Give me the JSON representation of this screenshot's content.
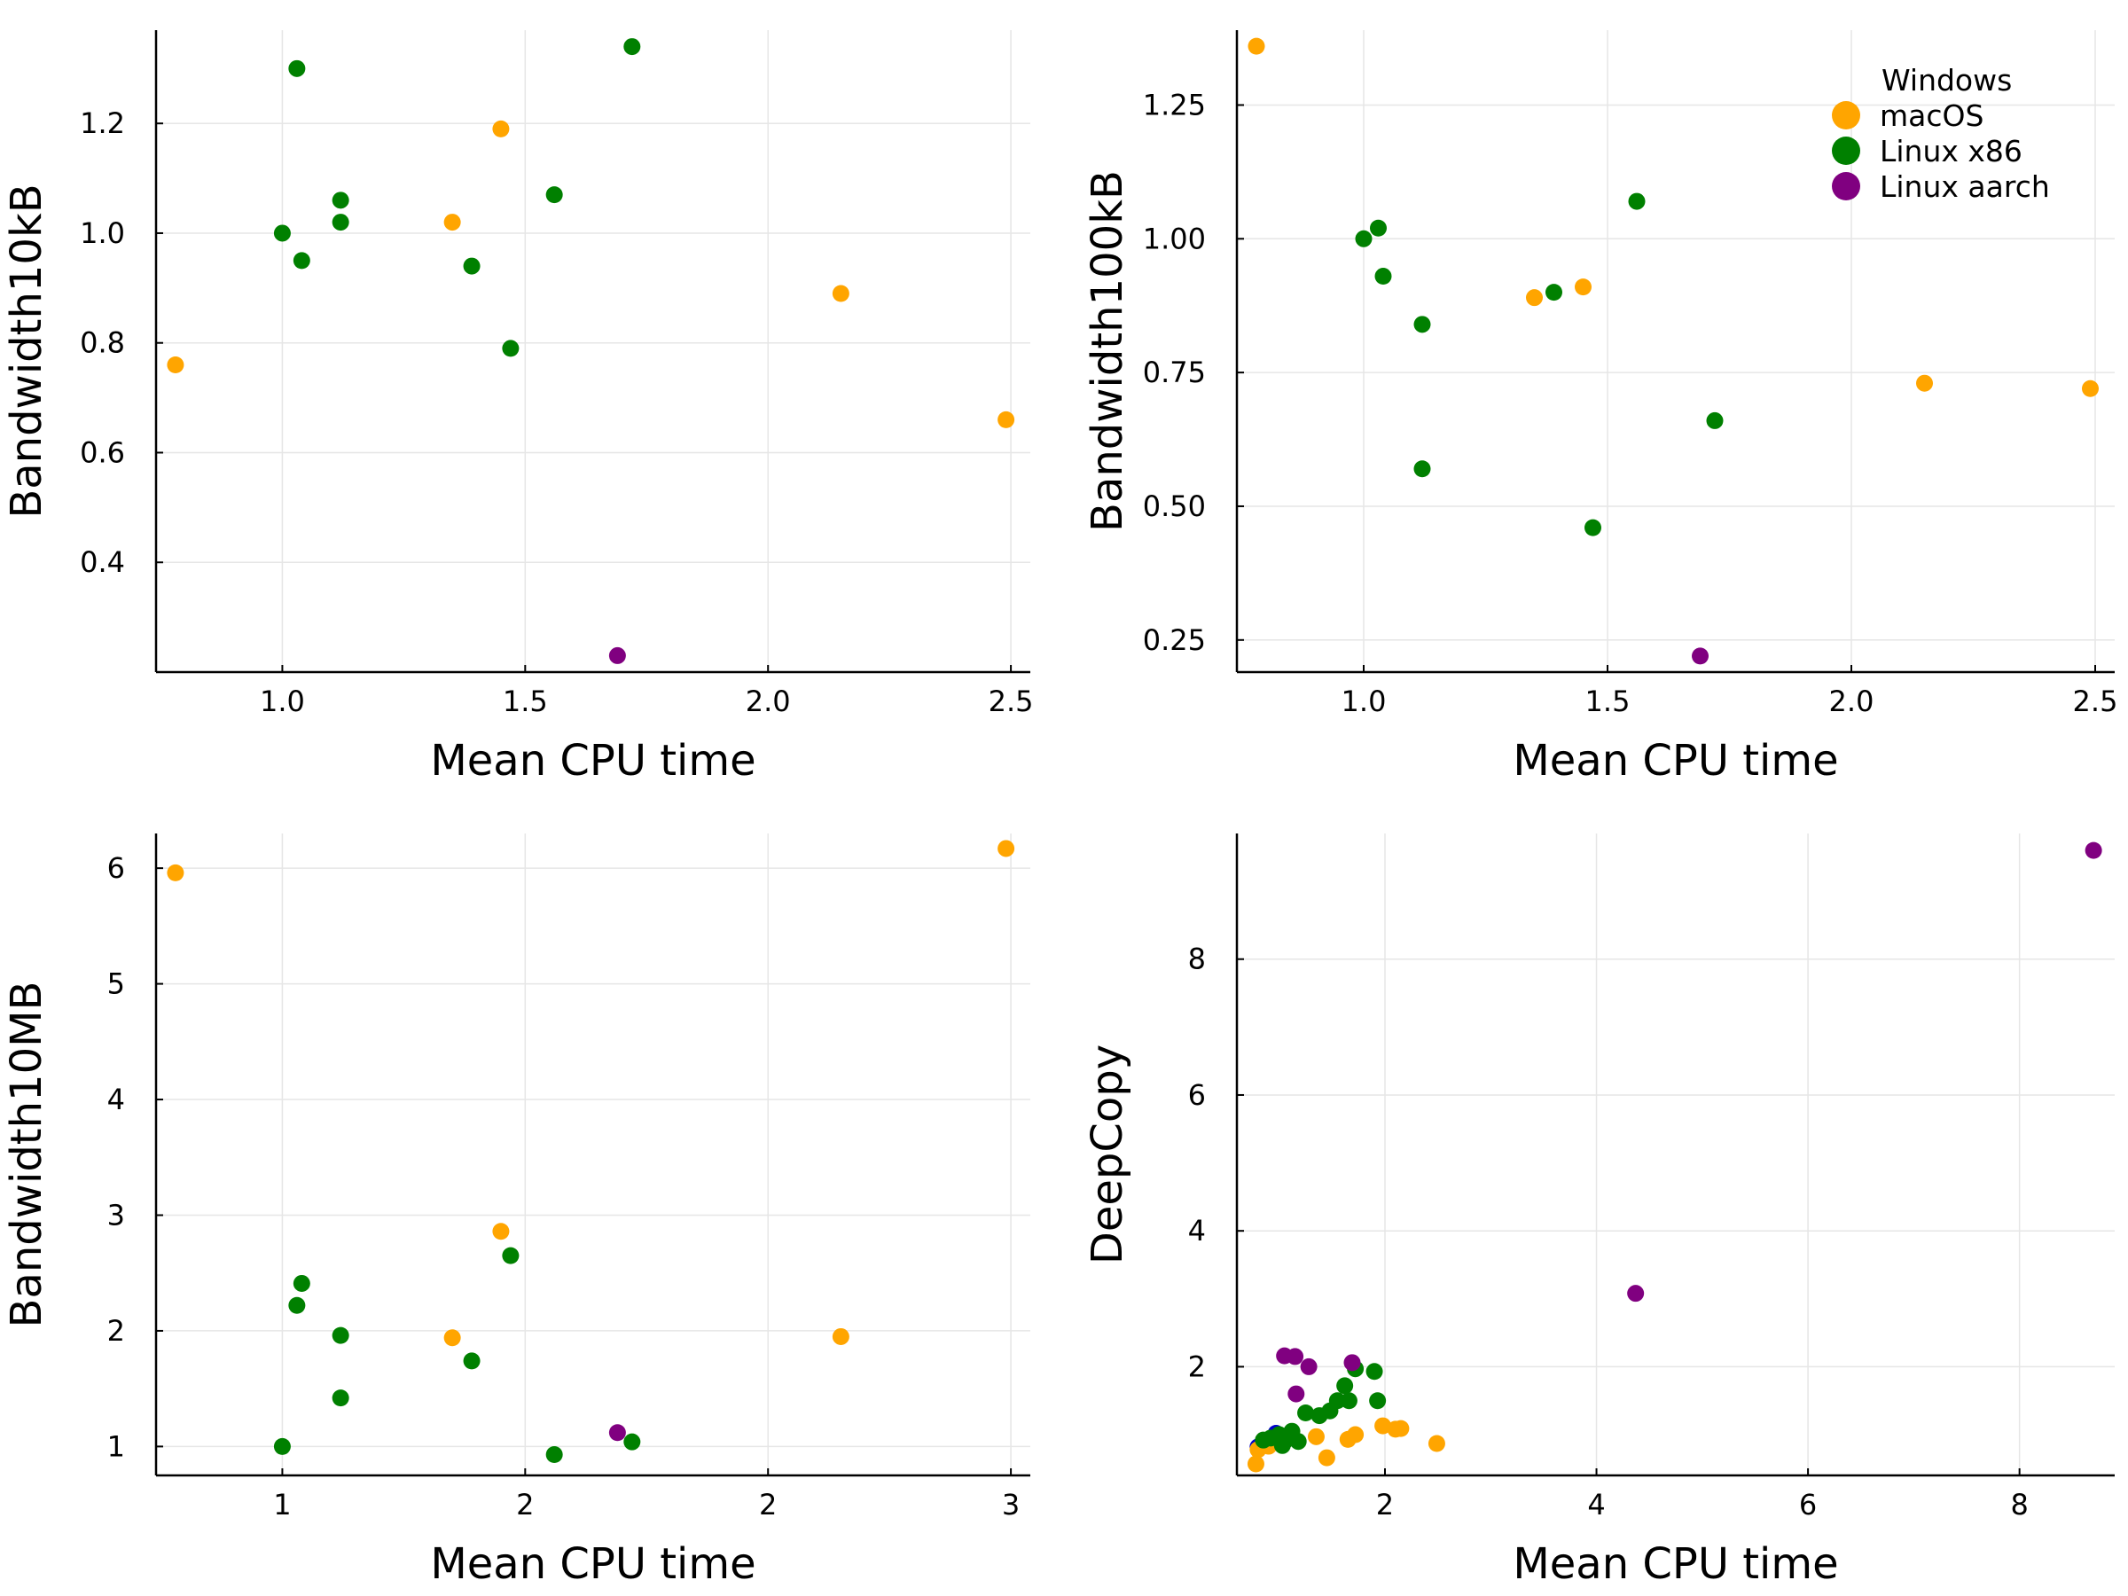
{
  "colors": {
    "Windows": "#0000cc",
    "macOS": "#ffa500",
    "Linux x86": "#008000",
    "Linux aarch": "#800080"
  },
  "legend": {
    "placement": "top-right",
    "entries": [
      "Windows",
      "macOS",
      "Linux x86",
      "Linux aarch"
    ]
  },
  "chart_data": [
    {
      "type": "scatter",
      "xlabel": "Mean CPU time",
      "ylabel": "Bandwidth10kB",
      "xlim": [
        0.74,
        2.54
      ],
      "ylim": [
        0.2,
        1.37
      ],
      "xticks": [
        1.0,
        1.5,
        2.0,
        2.5
      ],
      "yticks": [
        0.4,
        0.6,
        0.8,
        1.0,
        1.2
      ],
      "tick_decimals": 1,
      "grid": true,
      "series": [
        {
          "name": "macOS",
          "points": [
            [
              0.78,
              0.76
            ],
            [
              1.35,
              1.02
            ],
            [
              1.45,
              1.19
            ],
            [
              2.15,
              0.89
            ],
            [
              2.49,
              0.66
            ]
          ]
        },
        {
          "name": "Linux x86",
          "points": [
            [
              1.0,
              1.0
            ],
            [
              1.03,
              1.3
            ],
            [
              1.04,
              0.95
            ],
            [
              1.12,
              1.06
            ],
            [
              1.12,
              1.02
            ],
            [
              1.39,
              0.94
            ],
            [
              1.47,
              0.79
            ],
            [
              1.56,
              1.07
            ],
            [
              1.72,
              1.34
            ]
          ]
        },
        {
          "name": "Linux aarch",
          "points": [
            [
              1.69,
              0.23
            ]
          ]
        }
      ]
    },
    {
      "type": "scatter",
      "xlabel": "Mean CPU time",
      "ylabel": "Bandwidth100kB",
      "xlim": [
        0.74,
        2.54
      ],
      "ylim": [
        0.19,
        1.39
      ],
      "xticks": [
        1.0,
        1.5,
        2.0,
        2.5
      ],
      "yticks": [
        0.25,
        0.5,
        0.75,
        1.0,
        1.25
      ],
      "tick_decimals": 2,
      "grid": true,
      "legend": true,
      "series": [
        {
          "name": "macOS",
          "points": [
            [
              0.78,
              1.36
            ],
            [
              1.35,
              0.89
            ],
            [
              1.45,
              0.91
            ],
            [
              2.15,
              0.73
            ],
            [
              2.49,
              0.72
            ]
          ]
        },
        {
          "name": "Linux x86",
          "points": [
            [
              1.0,
              1.0
            ],
            [
              1.03,
              1.02
            ],
            [
              1.04,
              0.93
            ],
            [
              1.12,
              0.84
            ],
            [
              1.12,
              0.57
            ],
            [
              1.39,
              0.9
            ],
            [
              1.47,
              0.46
            ],
            [
              1.56,
              1.07
            ],
            [
              1.72,
              0.66
            ]
          ]
        },
        {
          "name": "Linux aarch",
          "points": [
            [
              1.69,
              0.22
            ]
          ]
        }
      ]
    },
    {
      "type": "scatter",
      "xlabel": "Mean CPU time",
      "ylabel": "Bandwidth10MB",
      "xlim": [
        0.74,
        2.54
      ],
      "ylim": [
        0.75,
        6.3
      ],
      "xticks": [
        1.0,
        1.5,
        2.0,
        2.5
      ],
      "yticks": [
        1,
        2,
        3,
        4,
        5,
        6
      ],
      "tick_decimals": 0,
      "grid": true,
      "series": [
        {
          "name": "macOS",
          "points": [
            [
              0.78,
              5.96
            ],
            [
              1.35,
              1.94
            ],
            [
              1.45,
              2.86
            ],
            [
              2.15,
              1.95
            ],
            [
              2.49,
              6.17
            ]
          ]
        },
        {
          "name": "Linux x86",
          "points": [
            [
              1.0,
              1.0
            ],
            [
              1.03,
              2.22
            ],
            [
              1.04,
              2.41
            ],
            [
              1.12,
              1.96
            ],
            [
              1.12,
              1.42
            ],
            [
              1.39,
              1.74
            ],
            [
              1.47,
              2.65
            ],
            [
              1.56,
              0.93
            ],
            [
              1.72,
              1.04
            ]
          ]
        },
        {
          "name": "Linux aarch",
          "points": [
            [
              1.69,
              1.12
            ]
          ]
        }
      ]
    },
    {
      "type": "scatter",
      "xlabel": "Mean CPU time",
      "ylabel": "DeepCopy",
      "xlim": [
        0.6,
        8.9
      ],
      "ylim": [
        0.4,
        9.85
      ],
      "xticks": [
        2,
        4,
        6,
        8
      ],
      "yticks": [
        2,
        4,
        6,
        8
      ],
      "tick_decimals": 0,
      "grid": true,
      "series": [
        {
          "name": "Windows",
          "points": [
            [
              0.8,
              0.82
            ],
            [
              0.88,
              0.9
            ],
            [
              0.97,
              1.02
            ],
            [
              1.02,
              0.96
            ]
          ]
        },
        {
          "name": "macOS",
          "points": [
            [
              0.78,
              0.57
            ],
            [
              0.8,
              0.78
            ],
            [
              0.9,
              0.83
            ],
            [
              1.35,
              0.97
            ],
            [
              1.45,
              0.66
            ],
            [
              1.65,
              0.93
            ],
            [
              1.72,
              1.0
            ],
            [
              1.98,
              1.13
            ],
            [
              2.1,
              1.08
            ],
            [
              2.15,
              1.09
            ],
            [
              2.49,
              0.87
            ]
          ]
        },
        {
          "name": "Linux x86",
          "points": [
            [
              0.85,
              0.92
            ],
            [
              0.92,
              0.95
            ],
            [
              1.0,
              1.0
            ],
            [
              1.03,
              0.84
            ],
            [
              1.05,
              0.9
            ],
            [
              1.12,
              1.05
            ],
            [
              1.18,
              0.9
            ],
            [
              1.25,
              1.32
            ],
            [
              1.38,
              1.28
            ],
            [
              1.48,
              1.35
            ],
            [
              1.55,
              1.5
            ],
            [
              1.62,
              1.72
            ],
            [
              1.66,
              1.5
            ],
            [
              1.72,
              1.97
            ],
            [
              1.9,
              1.93
            ],
            [
              1.93,
              1.5
            ]
          ]
        },
        {
          "name": "Linux aarch",
          "points": [
            [
              1.05,
              2.16
            ],
            [
              1.15,
              2.15
            ],
            [
              1.16,
              1.6
            ],
            [
              1.28,
              2.0
            ],
            [
              1.69,
              2.06
            ],
            [
              4.37,
              3.08
            ],
            [
              8.7,
              9.6
            ]
          ]
        }
      ]
    }
  ]
}
